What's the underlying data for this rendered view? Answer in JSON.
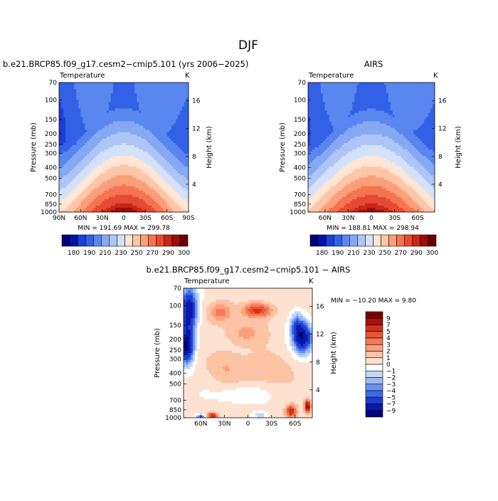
{
  "season": "DJF",
  "colors": {
    "temperature_levels": [
      "#00007f",
      "#0012a8",
      "#1d3fd4",
      "#3361e6",
      "#5a86f0",
      "#87a9f3",
      "#aec6f7",
      "#d3e2fa",
      "#ffe6d5",
      "#fdc6a8",
      "#fb9f7a",
      "#f67452",
      "#e74a32",
      "#c72818",
      "#9e0d0b",
      "#6b0000"
    ],
    "difference_levels": [
      "#00007f",
      "#0a1aa8",
      "#1d3fd4",
      "#3c68e9",
      "#6a92f2",
      "#9dbbf6",
      "#c5d8fa",
      "#ffffff",
      "#fde2d2",
      "#fcc3a5",
      "#fb9f7d",
      "#f57a56",
      "#ea5434",
      "#d2301c",
      "#a8110c",
      "#7a0000"
    ]
  },
  "panels": {
    "model": {
      "title": "b.e21.BRCP85.f09_g17.cesm2−cmip5.101 (yrs 2006−2025)",
      "variable": "Temperature",
      "units": "K",
      "min_max": "MIN = 191.69   MAX = 299.78"
    },
    "obs": {
      "title": "AIRS",
      "variable": "Temperature",
      "units": "K",
      "min_max": "MIN = 188.81   MAX = 298.94"
    },
    "diff": {
      "title": "b.e21.BRCP85.f09_g17.cesm2−cmip5.101 − AIRS",
      "variable": "Temperature",
      "units": "K",
      "min_max": "MIN = −10.20   MAX =   9.80"
    }
  },
  "colorbar_main": {
    "labels": [
      "180",
      "190",
      "210",
      "230",
      "250",
      "270",
      "290",
      "300"
    ]
  },
  "colorbar_diff": {
    "labels": [
      "9",
      "7",
      "5",
      "4",
      "3",
      "2",
      "1",
      "0",
      "−1",
      "−2",
      "−3",
      "−4",
      "−5",
      "−7",
      "−9"
    ]
  },
  "axis_labels": {
    "pressure": "Pressure  (mb)",
    "height": "Height  (km)"
  },
  "chart_data": [
    {
      "type": "heatmap",
      "title": "b.e21.BRCP85.f09_g17.cesm2−cmip5.101 (yrs 2006−2025)",
      "subtitle": "Temperature",
      "units": "K",
      "xlabel": "",
      "ylabel": "Pressure (mb)",
      "y2label": "Height (km)",
      "x_ticks": [
        "90N",
        "60N",
        "30N",
        "0",
        "30S",
        "60S",
        "90S"
      ],
      "x_ticks_lat": [
        90,
        60,
        30,
        0,
        -30,
        -60,
        -90
      ],
      "xlim": [
        90,
        -90
      ],
      "y_ticks": [
        70,
        100,
        150,
        200,
        250,
        300,
        400,
        500,
        700,
        850,
        1000
      ],
      "ylim": [
        70,
        1000
      ],
      "y2_ticks": [
        4,
        8,
        12,
        16
      ],
      "min": 191.69,
      "max": 299.78,
      "levels": [
        180,
        185,
        190,
        200,
        210,
        220,
        230,
        240,
        250,
        260,
        270,
        280,
        290,
        295,
        300
      ]
    },
    {
      "type": "heatmap",
      "title": "AIRS",
      "subtitle": "Temperature",
      "units": "K",
      "xlabel": "",
      "ylabel": "Pressure (mb)",
      "y2label": "Height (km)",
      "x_ticks": [
        "60N",
        "30N",
        "0",
        "30S",
        "60S"
      ],
      "x_ticks_lat": [
        60,
        30,
        0,
        -30,
        -60
      ],
      "xlim": [
        82,
        -82
      ],
      "y_ticks": [
        70,
        100,
        150,
        200,
        250,
        300,
        400,
        500,
        700,
        850,
        1000
      ],
      "ylim": [
        70,
        1000
      ],
      "y2_ticks": [
        4,
        8,
        12,
        16
      ],
      "min": 188.81,
      "max": 298.94,
      "levels": [
        180,
        185,
        190,
        200,
        210,
        220,
        230,
        240,
        250,
        260,
        270,
        280,
        290,
        295,
        300
      ]
    },
    {
      "type": "heatmap",
      "title": "b.e21.BRCP85.f09_g17.cesm2−cmip5.101 − AIRS",
      "subtitle": "Temperature",
      "units": "K",
      "xlabel": "",
      "ylabel": "Pressure (mb)",
      "y2label": "Height (km)",
      "x_ticks": [
        "60N",
        "30N",
        "0",
        "30S",
        "60S"
      ],
      "x_ticks_lat": [
        60,
        30,
        0,
        -30,
        -60
      ],
      "xlim": [
        82,
        -82
      ],
      "y_ticks": [
        70,
        100,
        150,
        200,
        250,
        300,
        400,
        500,
        700,
        850,
        1000
      ],
      "ylim": [
        70,
        1000
      ],
      "y2_ticks": [
        4,
        8,
        12,
        16
      ],
      "min": -10.2,
      "max": 9.8,
      "levels": [
        -9,
        -7,
        -5,
        -4,
        -3,
        -2,
        -1,
        0,
        1,
        2,
        3,
        4,
        5,
        7,
        9
      ]
    }
  ]
}
